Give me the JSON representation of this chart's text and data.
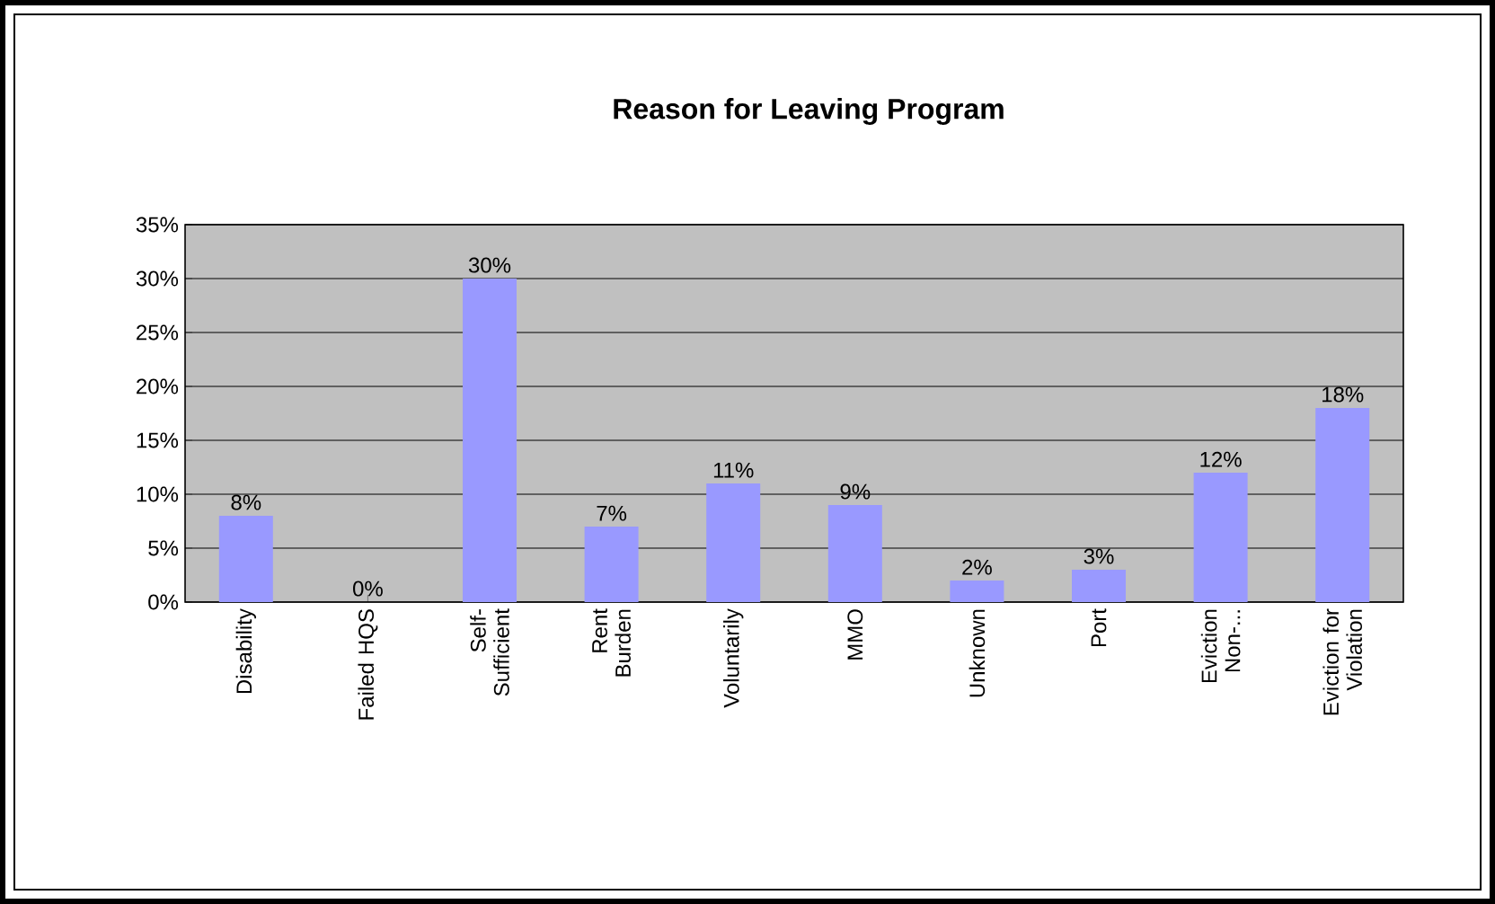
{
  "chart_data": {
    "type": "bar",
    "title": "Reason for Leaving Program",
    "categories": [
      "Disability",
      "Failed HQS",
      "Self-Sufficient",
      "Rent Burden",
      "Voluntarily",
      "MMO",
      "Unknown",
      "Port",
      "Eviction Non-...",
      "Eviction for Violation"
    ],
    "values": [
      8,
      0,
      30,
      7,
      11,
      9,
      2,
      3,
      12,
      18
    ],
    "value_labels": [
      "8%",
      "0%",
      "30%",
      "7%",
      "11%",
      "9%",
      "2%",
      "3%",
      "12%",
      "18%"
    ],
    "color": "#9999ff",
    "ylim": [
      0,
      35
    ],
    "yticks": [
      {
        "value": 0,
        "label": "0%"
      },
      {
        "value": 5,
        "label": "5%"
      },
      {
        "value": 10,
        "label": "10%"
      },
      {
        "value": 15,
        "label": "15%"
      },
      {
        "value": 20,
        "label": "20%"
      },
      {
        "value": 25,
        "label": "25%"
      },
      {
        "value": 30,
        "label": "30%"
      },
      {
        "value": 35,
        "label": "35%"
      }
    ],
    "grid": "y"
  }
}
